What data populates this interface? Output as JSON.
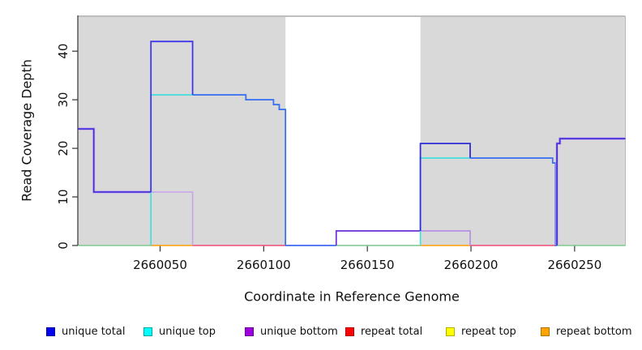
{
  "chart_data": {
    "type": "line",
    "subtype": "step-coverage",
    "title": "",
    "xlabel": "Coordinate in Reference Genome",
    "ylabel": "Read Coverage Depth",
    "xlim": [
      2660010.5,
      2660274.5
    ],
    "ylim": [
      0,
      47.2
    ],
    "x_ticks": [
      2660050,
      2660100,
      2660150,
      2660200,
      2660250
    ],
    "y_ticks": [
      0,
      10,
      20,
      30,
      40
    ],
    "grid": false,
    "legend_position": "bottom",
    "shaded_regions": [
      {
        "x0": 2660010.5,
        "x1": 2660110.5,
        "color": "#d9d9d9"
      },
      {
        "x0": 2660175.6,
        "x1": 2660274.5,
        "color": "#d9d9d9"
      }
    ],
    "gap_region": {
      "x0": 2660110.5,
      "x1": 2660175.6,
      "color": "#ffffff"
    },
    "legend": [
      {
        "label": "unique total",
        "color": "#0000ee",
        "border": "#0000a0"
      },
      {
        "label": "unique top",
        "color": "#00ffff",
        "border": "#00a8a8"
      },
      {
        "label": "unique bottom",
        "color": "#9d00dd",
        "border": "#6d0099"
      },
      {
        "label": "repeat total",
        "color": "#ff0000",
        "border": "#b30000"
      },
      {
        "label": "repeat top",
        "color": "#ffff00",
        "border": "#b0b000"
      },
      {
        "label": "repeat bottom",
        "color": "#ffa500",
        "border": "#b37300"
      }
    ],
    "series": [
      {
        "name": "unique total",
        "color": "#0000ee",
        "type": "step",
        "points": [
          [
            2660010.5,
            24
          ],
          [
            2660018,
            11
          ],
          [
            2660045.6,
            42
          ],
          [
            2660065.7,
            31
          ],
          [
            2660091.4,
            30
          ],
          [
            2660104.7,
            29
          ],
          [
            2660107.5,
            28
          ],
          [
            2660110.5,
            0
          ],
          [
            2660135,
            3
          ],
          [
            2660175.6,
            21
          ],
          [
            2660199.6,
            18
          ],
          [
            2660239.4,
            17
          ],
          [
            2660240.8,
            0
          ],
          [
            2660241.5,
            21
          ],
          [
            2660242.9,
            22
          ],
          [
            2660274.5,
            22
          ]
        ]
      },
      {
        "name": "unique top",
        "color": "#00ffff",
        "type": "step",
        "points": [
          [
            2660010.5,
            0
          ],
          [
            2660045.6,
            31
          ],
          [
            2660091.4,
            30
          ],
          [
            2660104.7,
            29
          ],
          [
            2660107.5,
            28
          ],
          [
            2660110.5,
            0
          ],
          [
            2660175.6,
            18
          ],
          [
            2660239.4,
            0
          ],
          [
            2660274.5,
            0
          ]
        ]
      },
      {
        "name": "unique bottom",
        "color": "#9d00dd",
        "type": "step",
        "points": [
          [
            2660010.5,
            24
          ],
          [
            2660018,
            11
          ],
          [
            2660065.7,
            0
          ],
          [
            2660135,
            3
          ],
          [
            2660199.6,
            0
          ],
          [
            2660241.5,
            21
          ],
          [
            2660242.9,
            22
          ],
          [
            2660274.5,
            22
          ]
        ]
      },
      {
        "name": "repeat total",
        "color": "#ff0000",
        "type": "step",
        "points": [
          [
            2660010.5,
            0
          ],
          [
            2660274.5,
            0
          ]
        ]
      },
      {
        "name": "repeat top",
        "color": "#ffff00",
        "type": "step",
        "points": [
          [
            2660010.5,
            0
          ],
          [
            2660274.5,
            0
          ]
        ]
      },
      {
        "name": "repeat bottom",
        "color": "#ffa500",
        "type": "step",
        "points": [
          [
            2660010.5,
            0
          ],
          [
            2660274.5,
            0
          ]
        ]
      }
    ],
    "render_segments": [
      {
        "name": "zero-green-1",
        "color": "#7fc98f",
        "width": 1.4,
        "points": [
          [
            2660010.5,
            0
          ],
          [
            2660045.6,
            0
          ]
        ]
      },
      {
        "name": "zero-orange-1",
        "color": "#ff9d00",
        "width": 1.6,
        "points": [
          [
            2660045.6,
            0
          ],
          [
            2660065.7,
            0
          ]
        ]
      },
      {
        "name": "zero-crimson-1",
        "color": "#ee4b78",
        "width": 1.4,
        "points": [
          [
            2660065.7,
            0
          ],
          [
            2660110.5,
            0
          ]
        ]
      },
      {
        "name": "zero-blue",
        "color": "#3e6cf0",
        "width": 1.7,
        "points": [
          [
            2660110.5,
            0
          ],
          [
            2660135,
            0
          ]
        ]
      },
      {
        "name": "zero-green-2",
        "color": "#7fc98f",
        "width": 1.4,
        "points": [
          [
            2660135,
            0
          ],
          [
            2660175.6,
            0
          ]
        ]
      },
      {
        "name": "zero-orange-2",
        "color": "#ff9d00",
        "width": 1.6,
        "points": [
          [
            2660175.6,
            0
          ],
          [
            2660199.6,
            0
          ]
        ]
      },
      {
        "name": "zero-crimson-2",
        "color": "#ee4b78",
        "width": 1.4,
        "points": [
          [
            2660199.6,
            0
          ],
          [
            2660240.8,
            0
          ]
        ]
      },
      {
        "name": "zero-green-3",
        "color": "#7fc98f",
        "width": 1.4,
        "points": [
          [
            2660241.5,
            0
          ],
          [
            2660274.5,
            0
          ]
        ]
      },
      {
        "name": "lavender-under-left",
        "color": "#c7a3ec",
        "width": 3.2,
        "points": [
          [
            2660010.5,
            24
          ],
          [
            2660018,
            24
          ],
          [
            2660018,
            11
          ],
          [
            2660045.6,
            11
          ]
        ]
      },
      {
        "name": "lavender-11",
        "color": "#c7a3ec",
        "width": 1.6,
        "points": [
          [
            2660045.6,
            11
          ],
          [
            2660065.7,
            11
          ],
          [
            2660065.7,
            0
          ]
        ]
      },
      {
        "name": "cyan-left",
        "color": "#45dede",
        "width": 1.7,
        "points": [
          [
            2660045.6,
            0
          ],
          [
            2660045.6,
            31
          ],
          [
            2660065.7,
            31
          ],
          [
            2660091.4,
            31
          ],
          [
            2660091.4,
            30
          ],
          [
            2660104.7,
            30
          ],
          [
            2660104.7,
            29
          ],
          [
            2660107.5,
            29
          ],
          [
            2660107.5,
            28
          ],
          [
            2660110.5,
            28
          ],
          [
            2660110.5,
            0
          ]
        ]
      },
      {
        "name": "indigo-left",
        "color": "#4433d8",
        "width": 1.7,
        "points": [
          [
            2660010.5,
            24
          ],
          [
            2660018,
            24
          ],
          [
            2660018,
            11
          ],
          [
            2660045.6,
            11
          ]
        ]
      },
      {
        "name": "blue-42-box",
        "color": "#4038e8",
        "width": 1.8,
        "points": [
          [
            2660045.6,
            11
          ],
          [
            2660045.6,
            42
          ],
          [
            2660065.7,
            42
          ],
          [
            2660065.7,
            31
          ]
        ]
      },
      {
        "name": "blue-steps",
        "color": "#3e6cf0",
        "width": 1.7,
        "points": [
          [
            2660065.7,
            31
          ],
          [
            2660091.4,
            31
          ],
          [
            2660091.4,
            30
          ],
          [
            2660104.7,
            30
          ],
          [
            2660104.7,
            29
          ],
          [
            2660107.5,
            29
          ],
          [
            2660107.5,
            28
          ],
          [
            2660110.5,
            28
          ],
          [
            2660110.5,
            0
          ]
        ]
      },
      {
        "name": "purple-box-white",
        "color": "#6e2ed2",
        "width": 1.7,
        "points": [
          [
            2660135,
            0
          ],
          [
            2660135,
            3
          ],
          [
            2660175.6,
            3
          ]
        ]
      },
      {
        "name": "purple-box-gray",
        "color": "#b690e6",
        "width": 1.7,
        "points": [
          [
            2660175.6,
            3
          ],
          [
            2660199.6,
            3
          ],
          [
            2660199.6,
            0
          ]
        ]
      },
      {
        "name": "cyan-right",
        "color": "#45dede",
        "width": 1.7,
        "points": [
          [
            2660175.6,
            0
          ],
          [
            2660175.6,
            18
          ],
          [
            2660239.4,
            18
          ]
        ]
      },
      {
        "name": "navy-21",
        "color": "#2d2dd6",
        "width": 1.8,
        "points": [
          [
            2660175.6,
            3
          ],
          [
            2660175.6,
            21
          ],
          [
            2660199.6,
            21
          ],
          [
            2660199.6,
            18
          ]
        ]
      },
      {
        "name": "blue-18",
        "color": "#3e6cf0",
        "width": 1.7,
        "points": [
          [
            2660199.6,
            18
          ],
          [
            2660239.4,
            18
          ],
          [
            2660239.4,
            17
          ],
          [
            2660240.8,
            17
          ],
          [
            2660240.8,
            0
          ],
          [
            2660241.5,
            0
          ]
        ]
      },
      {
        "name": "lavender-under-right",
        "color": "#c7a3ec",
        "width": 3.2,
        "points": [
          [
            2660241.5,
            0
          ],
          [
            2660241.5,
            21
          ],
          [
            2660242.9,
            21
          ],
          [
            2660242.9,
            22
          ],
          [
            2660274.5,
            22
          ]
        ]
      },
      {
        "name": "indigo-right",
        "color": "#4433d8",
        "width": 1.8,
        "points": [
          [
            2660241.5,
            0
          ],
          [
            2660241.5,
            21
          ],
          [
            2660242.9,
            21
          ],
          [
            2660242.9,
            22
          ],
          [
            2660274.5,
            22
          ]
        ]
      }
    ]
  },
  "colors": {
    "background": "#ffffff",
    "shade": "#d9d9d9",
    "plot_border_top": "#999999",
    "plot_border_right": "#b8b8b8",
    "axis": "#333333",
    "tick_label": "#111111"
  }
}
